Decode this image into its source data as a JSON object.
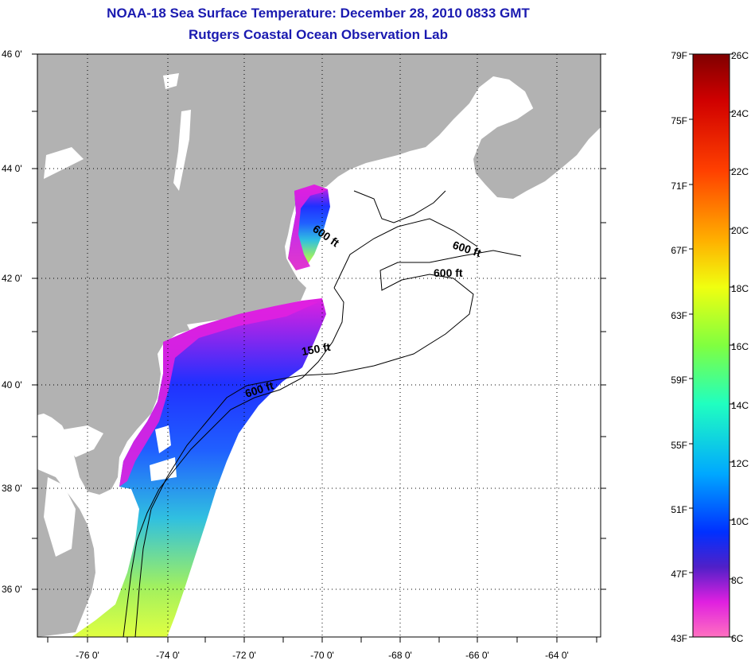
{
  "header": {
    "title": "NOAA-18 Sea Surface Temperature:  December 28, 2010 0833 GMT",
    "subtitle": "Rutgers Coastal Ocean Observation Lab"
  },
  "map": {
    "lat_labels": [
      "46 0'",
      "44 0'",
      "42 0'",
      "40 0'",
      "38 0'",
      "36 0'"
    ],
    "lon_labels": [
      "-76 0'",
      "-74 0'",
      "-72 0'",
      "-70 0'",
      "-68 0'",
      "-66 0'",
      "-64 0'"
    ],
    "contour_labels": [
      "600 ft",
      "600 ft",
      "600 ft",
      "150 ft",
      "600 ft"
    ],
    "colors": {
      "land": "#b2b2b2",
      "water": "#ffffff",
      "grid": "#000000"
    }
  },
  "colorbar": {
    "fahrenheit": [
      "79F",
      "75F",
      "71F",
      "67F",
      "63F",
      "59F",
      "55F",
      "51F",
      "47F",
      "43F"
    ],
    "celsius": [
      "26C",
      "24C",
      "22C",
      "20C",
      "18C",
      "16C",
      "14C",
      "12C",
      "10C",
      "8C",
      "6C"
    ],
    "gradient": [
      "#800000",
      "#e00000",
      "#ff6000",
      "#ffd000",
      "#c0ff20",
      "#40ff80",
      "#00f0f0",
      "#00a0ff",
      "#0020ff",
      "#6020c0",
      "#e020e0",
      "#ff60c0"
    ]
  }
}
